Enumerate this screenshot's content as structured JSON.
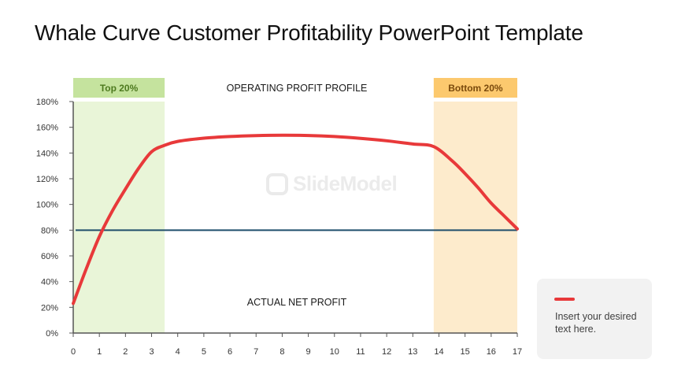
{
  "slide": {
    "title": "Whale Curve Customer Profitability PowerPoint Template"
  },
  "watermark": {
    "text": "SlideModel"
  },
  "legend": {
    "text": "Insert your desired text here.",
    "color": "#e8393a"
  },
  "colors": {
    "curve": "#e8393a",
    "baseline": "#1f4e6b",
    "top_band": "#e9f5d8",
    "top_header": "#c5e39e",
    "top_header_text": "#4d7a1f",
    "bottom_band": "#fdebcc",
    "bottom_header": "#fcc96e",
    "bottom_header_text": "#7a4a0c",
    "axis": "#555555"
  },
  "chart_data": {
    "type": "line",
    "xlim": [
      0,
      17
    ],
    "ylim": [
      0,
      180
    ],
    "x_ticks": [
      "0",
      "1",
      "2",
      "3",
      "4",
      "5",
      "6",
      "7",
      "8",
      "9",
      "10",
      "11",
      "12",
      "13",
      "14",
      "15",
      "16",
      "17"
    ],
    "y_ticks": [
      "0%",
      "20%",
      "40%",
      "60%",
      "80%",
      "100%",
      "120%",
      "140%",
      "160%",
      "180%"
    ],
    "y_tick_values": [
      0,
      20,
      40,
      60,
      80,
      100,
      120,
      140,
      160,
      180
    ],
    "series": [
      {
        "name": "",
        "color": "#e8393a",
        "x": [
          0,
          0.5,
          1,
          1.5,
          2,
          2.5,
          3,
          3.5,
          4,
          5,
          6,
          7,
          8,
          9,
          10,
          11,
          12,
          13,
          13.8,
          14.5,
          15,
          15.5,
          16,
          16.5,
          17
        ],
        "y": [
          23,
          50,
          75,
          95,
          112,
          128,
          141,
          146,
          149,
          151.5,
          152.8,
          153.5,
          153.8,
          153.6,
          152.8,
          151.4,
          149.5,
          147,
          145,
          134,
          124,
          113,
          101,
          91,
          81
        ]
      }
    ],
    "reference_line": {
      "y": 80
    },
    "bands": [
      {
        "label": "Top 20%",
        "x_start": 0,
        "x_end": 3.5
      },
      {
        "label": "Bottom 20%",
        "x_start": 13.8,
        "x_end": 17
      }
    ],
    "annotations": {
      "upper": "OPERATING PROFIT PROFILE",
      "lower": "ACTUAL NET PROFIT"
    }
  }
}
